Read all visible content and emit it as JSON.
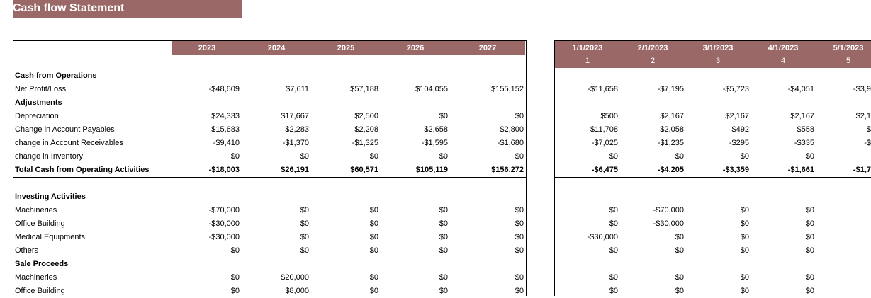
{
  "header": {
    "title": "Cash flow Statement"
  },
  "left_table": {
    "columns": [
      "2023",
      "2024",
      "2025",
      "2026",
      "2027"
    ],
    "rows": [
      {
        "label": "Cash from Operations",
        "style": "section"
      },
      {
        "label": "Net Profit/Loss",
        "values": [
          "-$48,609",
          "$7,611",
          "$57,188",
          "$104,055",
          "$155,152"
        ]
      },
      {
        "label": "Adjustments",
        "style": "section"
      },
      {
        "label": "Depreciation",
        "values": [
          "$24,333",
          "$17,667",
          "$2,500",
          "$0",
          "$0"
        ]
      },
      {
        "label": "Change in Account Payables",
        "values": [
          "$15,683",
          "$2,283",
          "$2,208",
          "$2,658",
          "$2,800"
        ]
      },
      {
        "label": "change in Account Receivables",
        "values": [
          "-$9,410",
          "-$1,370",
          "-$1,325",
          "-$1,595",
          "-$1,680"
        ]
      },
      {
        "label": "change in Inventory",
        "values": [
          "$0",
          "$0",
          "$0",
          "$0",
          "$0"
        ]
      },
      {
        "label": "Total Cash from Operating Activities",
        "style": "total",
        "values": [
          "-$18,003",
          "$26,191",
          "$60,571",
          "$105,119",
          "$156,272"
        ]
      },
      null,
      {
        "label": "Investing Activities",
        "style": "section"
      },
      {
        "label": "Machineries",
        "values": [
          "-$70,000",
          "$0",
          "$0",
          "$0",
          "$0"
        ]
      },
      {
        "label": "Office Building",
        "values": [
          "-$30,000",
          "$0",
          "$0",
          "$0",
          "$0"
        ]
      },
      {
        "label": "Medical Equipments",
        "values": [
          "-$30,000",
          "$0",
          "$0",
          "$0",
          "$0"
        ]
      },
      {
        "label": "Others",
        "values": [
          "$0",
          "$0",
          "$0",
          "$0",
          "$0"
        ]
      },
      {
        "label": "Sale Proceeds",
        "style": "section"
      },
      {
        "label": "Machineries",
        "values": [
          "$0",
          "$20,000",
          "$0",
          "$0",
          "$0"
        ]
      },
      {
        "label": "Office Building",
        "values": [
          "$0",
          "$8,000",
          "$0",
          "$0",
          "$0"
        ]
      }
    ]
  },
  "right_table": {
    "columns": [
      {
        "date": "1/1/2023",
        "period": 1
      },
      {
        "date": "2/1/2023",
        "period": 2
      },
      {
        "date": "3/1/2023",
        "period": 3
      },
      {
        "date": "4/1/2023",
        "period": 4
      },
      {
        "date": "5/1/2023",
        "period": 5
      }
    ],
    "rows": [
      null,
      [
        "-$11,658",
        "-$7,195",
        "-$5,723",
        "-$4,051",
        "-$3,9"
      ],
      null,
      [
        "$500",
        "$2,167",
        "$2,167",
        "$2,167",
        "$2,1"
      ],
      [
        "$11,708",
        "$2,058",
        "$492",
        "$558",
        "$"
      ],
      [
        "-$7,025",
        "-$1,235",
        "-$295",
        "-$335",
        "-$"
      ],
      [
        "$0",
        "$0",
        "$0",
        "$0",
        null
      ],
      [
        "-$6,475",
        "-$4,205",
        "-$3,359",
        "-$1,661",
        "-$1,7"
      ],
      null,
      null,
      [
        "$0",
        "-$70,000",
        "$0",
        "$0",
        null
      ],
      [
        "$0",
        "-$30,000",
        "$0",
        "$0",
        null
      ],
      [
        "-$30,000",
        "$0",
        "$0",
        "$0",
        null
      ],
      [
        "$0",
        "$0",
        "$0",
        "$0",
        null
      ],
      null,
      [
        "$0",
        "$0",
        "$0",
        "$0",
        null
      ],
      [
        "$0",
        "$0",
        "$0",
        "$0",
        null
      ]
    ]
  }
}
